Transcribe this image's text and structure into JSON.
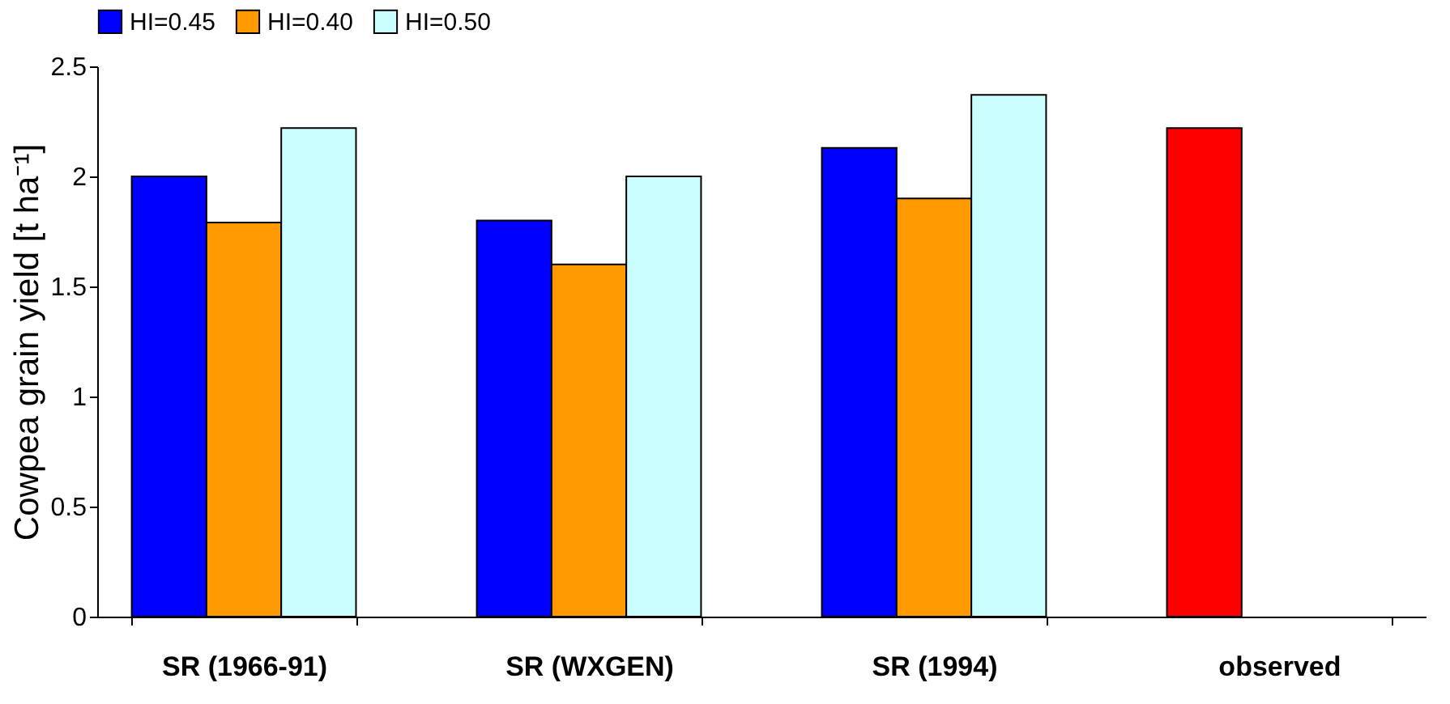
{
  "chart_data": {
    "type": "bar",
    "ylabel": "Cowpea grain yield [t ha⁻¹]",
    "categories": [
      "SR (1966-91)",
      "SR (WXGEN)",
      "SR (1994)",
      "observed"
    ],
    "series": [
      {
        "name": "HI=0.45",
        "color": "#0000ff",
        "values": [
          2.0,
          1.8,
          2.13,
          null
        ]
      },
      {
        "name": "HI=0.40",
        "color": "#ff9900",
        "values": [
          1.79,
          1.6,
          1.9,
          null
        ]
      },
      {
        "name": "HI=0.50",
        "color": "#ccffff",
        "values": [
          2.22,
          2.0,
          2.37,
          null
        ]
      },
      {
        "color": "#ff0000",
        "values": [
          null,
          null,
          null,
          2.22
        ]
      }
    ],
    "ylim": [
      0,
      2.5
    ],
    "yticks": [
      0,
      0.5,
      1,
      1.5,
      2,
      2.5
    ],
    "grid": false,
    "legend": "top"
  }
}
